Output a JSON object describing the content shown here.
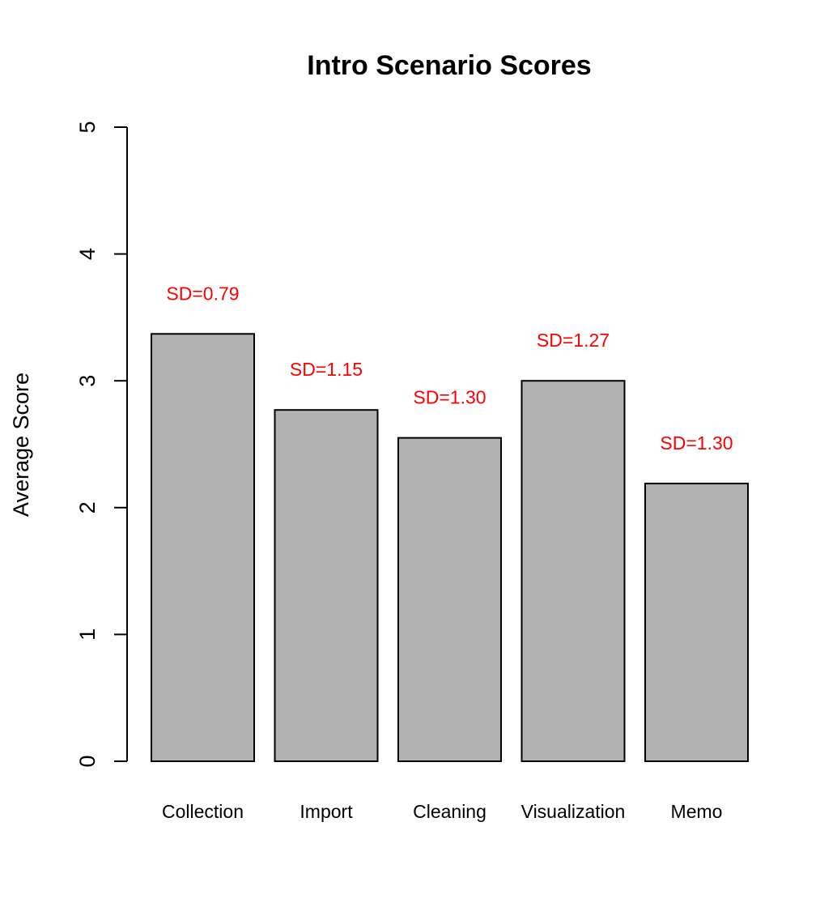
{
  "chart_data": {
    "type": "bar",
    "title": "Intro Scenario Scores",
    "xlabel": "",
    "ylabel": "Average Score",
    "ylim": [
      0,
      5
    ],
    "yticks": [
      0,
      1,
      2,
      3,
      4,
      5
    ],
    "categories": [
      "Collection",
      "Import",
      "Cleaning",
      "Visualization",
      "Memo"
    ],
    "values": [
      3.37,
      2.77,
      2.55,
      3.0,
      2.19
    ],
    "annotations": [
      "SD=0.79",
      "SD=1.15",
      "SD=1.30",
      "SD=1.27",
      "SD=1.30"
    ],
    "colors": {
      "bar_fill": "#b2b2b2",
      "bar_stroke": "#000000",
      "annotation": "#ff0000"
    },
    "grid": false
  }
}
